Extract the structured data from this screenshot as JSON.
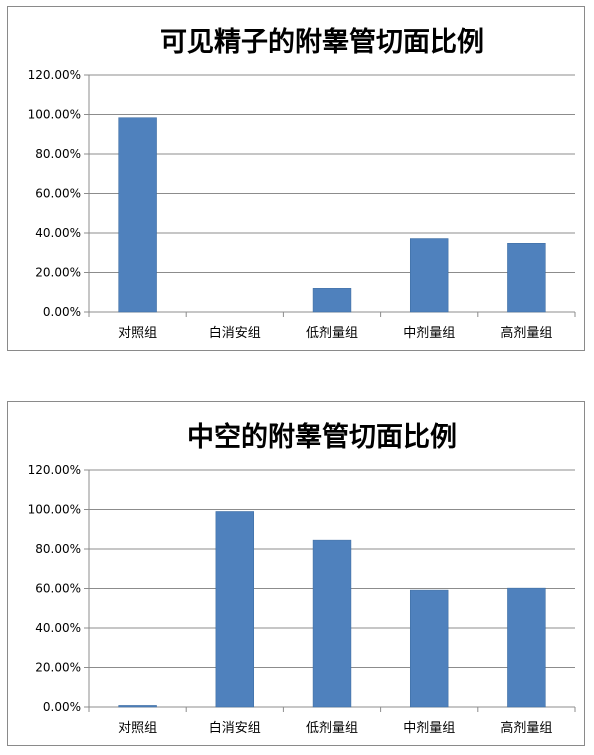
{
  "chart_data": [
    {
      "type": "bar",
      "title": "可见精子的附睾管切面比例",
      "categories": [
        "对照组",
        "白消安组",
        "低剂量组",
        "中剂量组",
        "高剂量组"
      ],
      "values": [
        0.984,
        0.0,
        0.12,
        0.372,
        0.348
      ],
      "ylim": [
        0,
        1.2
      ],
      "yticks": [
        0,
        0.2,
        0.4,
        0.6,
        0.8,
        1.0,
        1.2
      ],
      "ytick_labels": [
        "0.00%",
        "20.00%",
        "40.00%",
        "60.00%",
        "80.00%",
        "100.00%",
        "120.00%"
      ],
      "bar_color": "#4f81bd",
      "grid": true,
      "legend": false
    },
    {
      "type": "bar",
      "title": "中空的附睾管切面比例",
      "categories": [
        "对照组",
        "白消安组",
        "低剂量组",
        "中剂量组",
        "高剂量组"
      ],
      "values": [
        0.008,
        0.99,
        0.845,
        0.592,
        0.602
      ],
      "ylim": [
        0,
        1.2
      ],
      "yticks": [
        0,
        0.2,
        0.4,
        0.6,
        0.8,
        1.0,
        1.2
      ],
      "ytick_labels": [
        "0.00%",
        "20.00%",
        "40.00%",
        "60.00%",
        "80.00%",
        "100.00%",
        "120.00%"
      ],
      "bar_color": "#4f81bd",
      "grid": true,
      "legend": false
    }
  ]
}
